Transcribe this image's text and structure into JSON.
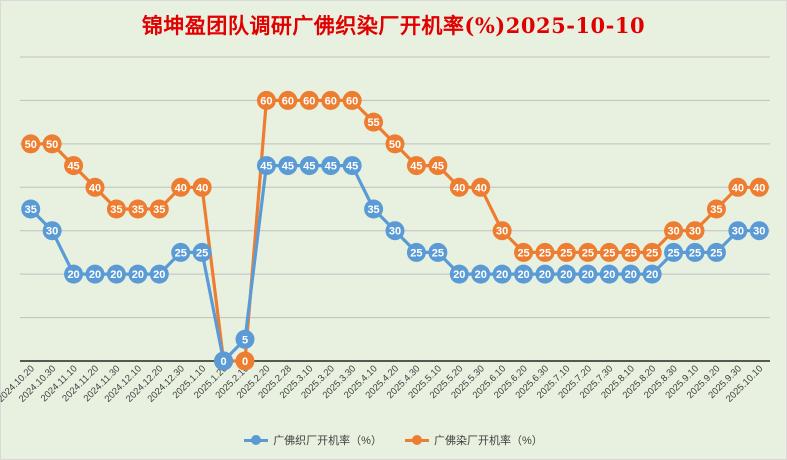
{
  "chart_data": {
    "type": "line",
    "title": "锦坤盈团队调研广佛织染厂开机率(%)2025-10-10",
    "categories": [
      "2024.10.20",
      "2024.10.30",
      "2024.11.10",
      "2024.11.20",
      "2024.11.30",
      "2024.12.10",
      "2024.12.20",
      "2024.12.30",
      "2025.1.10",
      "2025.1.20",
      "2025.2.10",
      "2025.2.20",
      "2025.2.28",
      "2025.3.10",
      "2025.3.20",
      "2025.3.30",
      "2025.4.10",
      "2025.4.20",
      "2025.4.30",
      "2025.5.10",
      "2025.5.20",
      "2025.5.30",
      "2025.6.10",
      "2025.6.20",
      "2025.6.30",
      "2025.7.10",
      "2025.7.20",
      "2025.7.30",
      "2025.8.10",
      "2025.8.20",
      "2025.8.30",
      "2025.9.10",
      "2025.9.20",
      "2025.9.30",
      "2025.10.10"
    ],
    "series": [
      {
        "name": "广佛织厂开机率（%）",
        "color": "#5b9bd5",
        "values": [
          35,
          30,
          20,
          20,
          20,
          20,
          20,
          25,
          25,
          0,
          5,
          45,
          45,
          45,
          45,
          45,
          35,
          30,
          25,
          25,
          20,
          20,
          20,
          20,
          20,
          20,
          20,
          20,
          20,
          20,
          25,
          25,
          25,
          30,
          30
        ]
      },
      {
        "name": "广佛染厂开机率（%）",
        "color": "#ed7d31",
        "values": [
          50,
          50,
          45,
          40,
          35,
          35,
          35,
          40,
          40,
          0,
          0,
          60,
          60,
          60,
          60,
          60,
          55,
          50,
          45,
          45,
          40,
          40,
          30,
          25,
          25,
          25,
          25,
          25,
          25,
          25,
          30,
          30,
          35,
          40,
          40
        ]
      }
    ],
    "ylim": [
      0,
      70
    ],
    "grid": true,
    "legend_position": "bottom",
    "data_labels": true
  }
}
